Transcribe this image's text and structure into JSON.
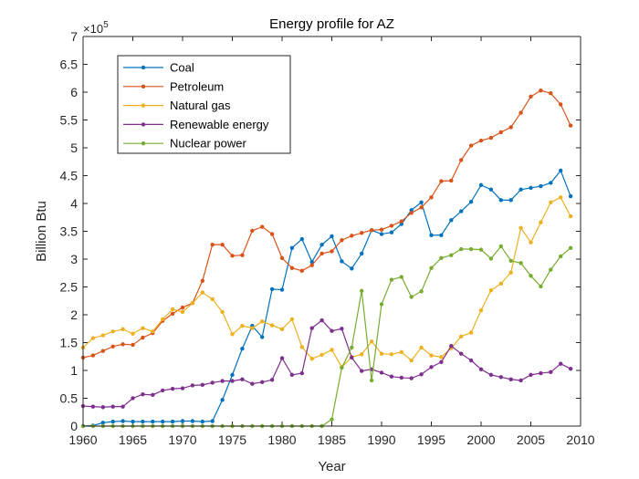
{
  "chart_data": {
    "type": "line",
    "title": "Energy profile for AZ",
    "xlabel": "Year",
    "ylabel": "Billion Btu",
    "y_exponent_label": "×10",
    "y_exponent_power": "5",
    "xlim": [
      1960,
      2010
    ],
    "ylim": [
      0,
      700000
    ],
    "x_ticks": [
      1960,
      1965,
      1970,
      1975,
      1980,
      1985,
      1990,
      1995,
      2000,
      2005,
      2010
    ],
    "y_ticks": [
      0,
      50000,
      100000,
      150000,
      200000,
      250000,
      300000,
      350000,
      400000,
      450000,
      500000,
      550000,
      600000,
      650000,
      700000
    ],
    "y_tick_labels": [
      "0",
      "0.5",
      "1",
      "1.5",
      "2",
      "2.5",
      "3",
      "3.5",
      "4",
      "4.5",
      "5",
      "5.5",
      "6",
      "6.5",
      "7"
    ],
    "grid": false,
    "legend_position": "top-left",
    "x": [
      1960,
      1961,
      1962,
      1963,
      1964,
      1965,
      1966,
      1967,
      1968,
      1969,
      1970,
      1971,
      1972,
      1973,
      1974,
      1975,
      1976,
      1977,
      1978,
      1979,
      1980,
      1981,
      1982,
      1983,
      1984,
      1985,
      1986,
      1987,
      1988,
      1989,
      1990,
      1991,
      1992,
      1993,
      1994,
      1995,
      1996,
      1997,
      1998,
      1999,
      2000,
      2001,
      2002,
      2003,
      2004,
      2005,
      2006,
      2007,
      2008,
      2009
    ],
    "series": [
      {
        "name": "Coal",
        "color": "#0072BD",
        "values": [
          0,
          1000,
          6000,
          8000,
          9000,
          8000,
          8000,
          8000,
          8000,
          8000,
          9000,
          9000,
          8000,
          9000,
          47000,
          92000,
          139000,
          180000,
          160000,
          246000,
          245000,
          320000,
          336000,
          295000,
          326000,
          341000,
          296000,
          283000,
          310000,
          352000,
          345000,
          348000,
          363000,
          388000,
          402000,
          343000,
          343000,
          370000,
          386000,
          403000,
          433000,
          425000,
          406000,
          406000,
          425000,
          428000,
          431000,
          437000,
          459000,
          413000
        ]
      },
      {
        "name": "Petroleum",
        "color": "#D95319",
        "values": [
          123000,
          127000,
          135000,
          143000,
          147000,
          146000,
          159000,
          167000,
          189000,
          202000,
          213000,
          221000,
          261000,
          326000,
          326000,
          306000,
          307000,
          351000,
          358000,
          345000,
          302000,
          284000,
          279000,
          289000,
          310000,
          314000,
          334000,
          342000,
          347000,
          352000,
          353000,
          360000,
          368000,
          383000,
          393000,
          411000,
          440000,
          441000,
          478000,
          504000,
          513000,
          518000,
          528000,
          537000,
          563000,
          592000,
          603000,
          598000,
          578000,
          540000
        ]
      },
      {
        "name": "Natural gas",
        "color": "#EDB120",
        "values": [
          141000,
          158000,
          163000,
          170000,
          174000,
          166000,
          176000,
          170000,
          192000,
          210000,
          205000,
          221000,
          240000,
          228000,
          205000,
          165000,
          180000,
          176000,
          188000,
          181000,
          174000,
          192000,
          142000,
          121000,
          128000,
          137000,
          106000,
          124000,
          129000,
          152000,
          130000,
          129000,
          133000,
          118000,
          141000,
          127000,
          124000,
          140000,
          161000,
          168000,
          208000,
          244000,
          256000,
          276000,
          356000,
          330000,
          366000,
          402000,
          411000,
          377000
        ]
      },
      {
        "name": "Renewable energy",
        "color": "#7E2F8E",
        "values": [
          36000,
          35000,
          34000,
          35000,
          35000,
          50000,
          57000,
          56000,
          64000,
          67000,
          68000,
          73000,
          74000,
          78000,
          81000,
          81000,
          84000,
          76000,
          79000,
          83000,
          122000,
          92000,
          95000,
          176000,
          190000,
          171000,
          175000,
          123000,
          99000,
          102000,
          96000,
          89000,
          87000,
          86000,
          93000,
          106000,
          115000,
          144000,
          130000,
          118000,
          102000,
          92000,
          88000,
          84000,
          82000,
          92000,
          95000,
          97000,
          112000,
          103000
        ]
      },
      {
        "name": "Nuclear power",
        "color": "#77AC30",
        "values": [
          0,
          0,
          0,
          0,
          0,
          0,
          0,
          0,
          0,
          0,
          0,
          0,
          0,
          0,
          0,
          0,
          0,
          0,
          0,
          0,
          0,
          0,
          0,
          0,
          0,
          12000,
          105000,
          141000,
          243000,
          82000,
          219000,
          263000,
          268000,
          232000,
          242000,
          284000,
          302000,
          307000,
          318000,
          318000,
          317000,
          301000,
          323000,
          297000,
          293000,
          270000,
          251000,
          281000,
          305000,
          320000
        ]
      }
    ]
  }
}
